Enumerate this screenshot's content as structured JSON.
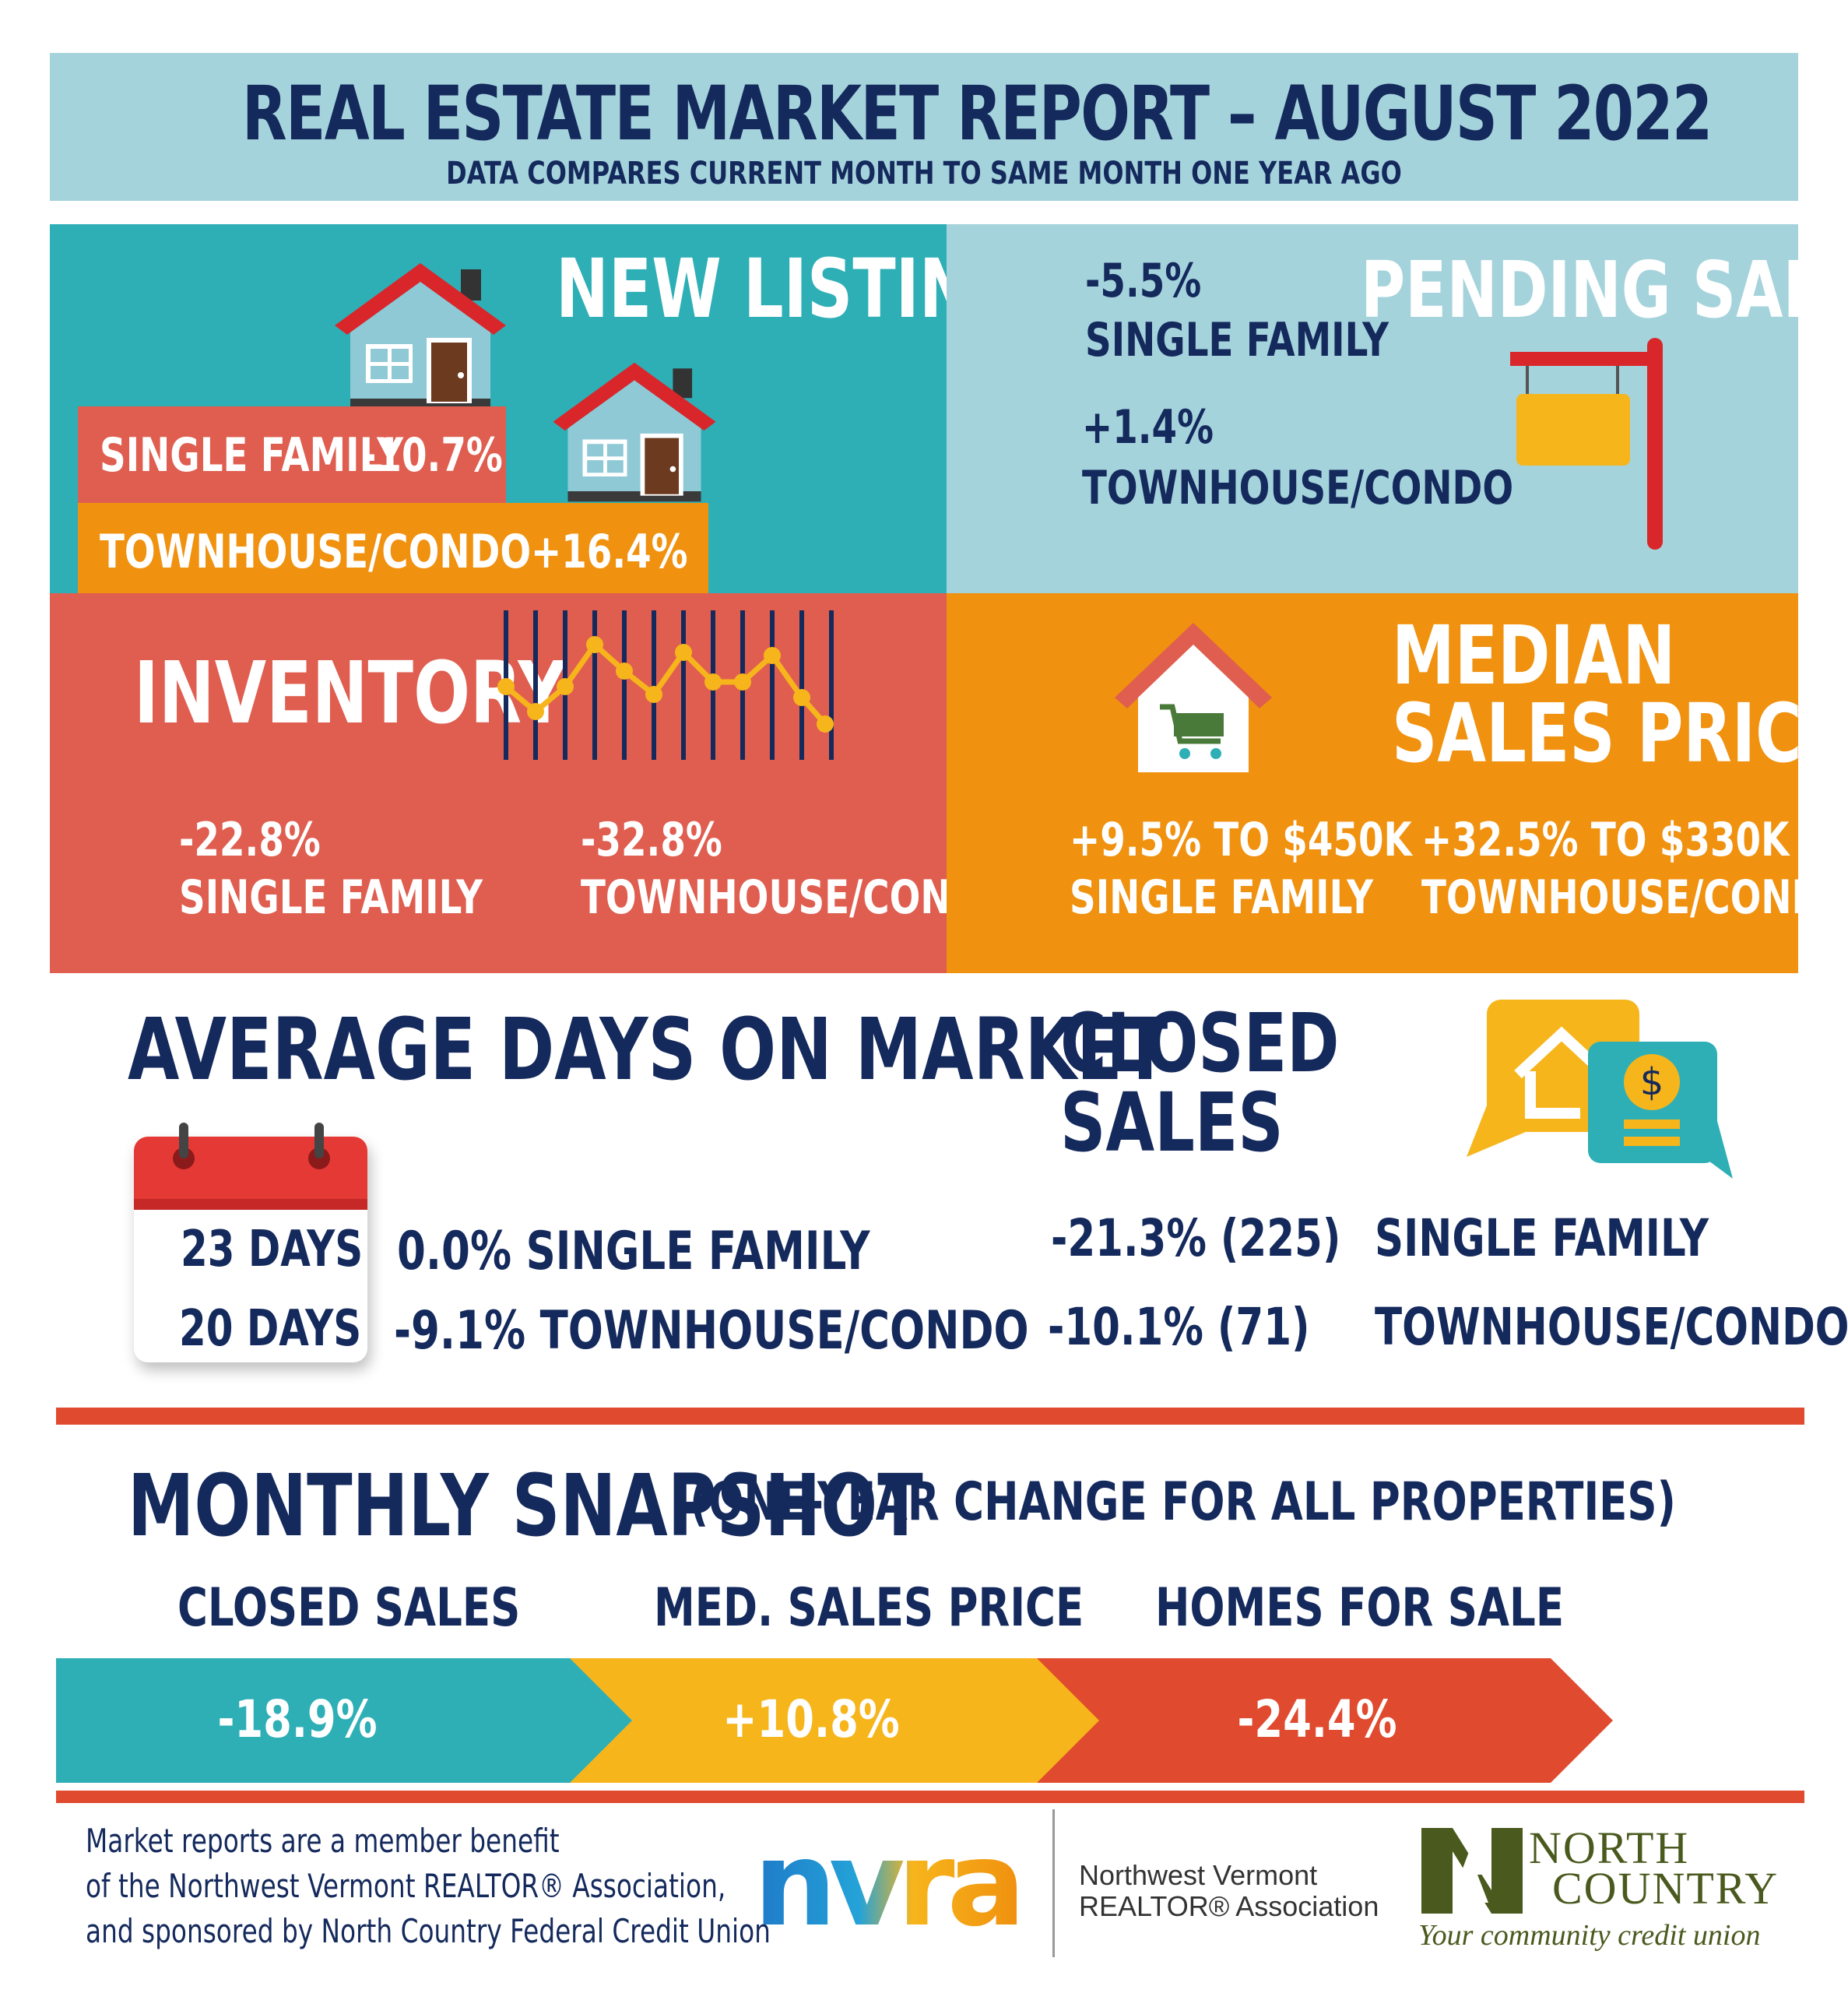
{
  "header": {
    "title": "REAL ESTATE MARKET REPORT – AUGUST 2022",
    "subtitle": "DATA COMPARES CURRENT MONTH TO SAME MONTH ONE YEAR AGO"
  },
  "new_listings": {
    "title": "NEW LISTINGS",
    "single_family_label": "SINGLE FAMILY",
    "single_family_value": "-10.7%",
    "townhouse_label": "TOWNHOUSE/CONDO",
    "townhouse_value": "+16.4%",
    "icon": "house-icon"
  },
  "pending_sales": {
    "title": "PENDING SALES",
    "single_family_value": "-5.5%",
    "single_family_label": "SINGLE FAMILY",
    "townhouse_value": "+1.4%",
    "townhouse_label": "TOWNHOUSE/CONDO",
    "icon": "for-sale-sign-icon"
  },
  "inventory": {
    "title": "INVENTORY",
    "single_family_value": "-22.8%",
    "single_family_label": "SINGLE FAMILY",
    "townhouse_value": "-32.8%",
    "townhouse_label": "TOWNHOUSE/CONDO",
    "icon": "line-chart-icon"
  },
  "median_sales_price": {
    "title_line1": "MEDIAN",
    "title_line2": "SALES PRICE",
    "single_family_value": "+9.5% TO $450K",
    "single_family_label": "SINGLE FAMILY",
    "townhouse_value": "+32.5% TO $330K",
    "townhouse_label": "TOWNHOUSE/CONDO",
    "icon": "house-cart-icon"
  },
  "days_on_market": {
    "title": "AVERAGE DAYS ON MARKET",
    "single_family_days": "23 DAYS",
    "townhouse_days": "20 DAYS",
    "single_family_change": "0.0% SINGLE FAMILY",
    "townhouse_change": "-9.1% TOWNHOUSE/CONDO",
    "icon": "calendar-icon"
  },
  "closed_sales": {
    "title_line1": "CLOSED",
    "title_line2": "SALES",
    "single_family_value": "-21.3% (225)",
    "single_family_label": "SINGLE FAMILY",
    "townhouse_value": "-10.1% (71)",
    "townhouse_label": "TOWNHOUSE/CONDO",
    "icon": "house-dollar-chat-icon"
  },
  "snapshot": {
    "title": "MONTHLY SNAPSHOT",
    "subtitle": "(ONE-YEAR CHANGE FOR ALL PROPERTIES)",
    "items": [
      {
        "label": "CLOSED SALES",
        "value": "-18.9%",
        "color": "#2eafb6"
      },
      {
        "label": "MED. SALES PRICE",
        "value": "+10.8%",
        "color": "#f7b51c"
      },
      {
        "label": "HOMES FOR SALE",
        "value": "-24.4%",
        "color": "#e04a2e"
      }
    ]
  },
  "footer": {
    "line1": "Market reports are a member benefit",
    "line2": "of the Northwest Vermont REALTOR® Association,",
    "line3": "and sponsored by North Country Federal Credit Union",
    "nvra_logo_text": "nvra",
    "nvra_name_line1": "Northwest Vermont",
    "nvra_name_line2": "REALTOR® Association",
    "nc_name_line1": "NORTH",
    "nc_name_line2": "COUNTRY",
    "nc_tagline": "Your community credit union"
  },
  "colors": {
    "navy": "#14295c",
    "teal": "#2eafb6",
    "light_blue": "#a5d3dc",
    "red": "#df5e50",
    "orange": "#f0910f",
    "yellow": "#f7b51c"
  }
}
